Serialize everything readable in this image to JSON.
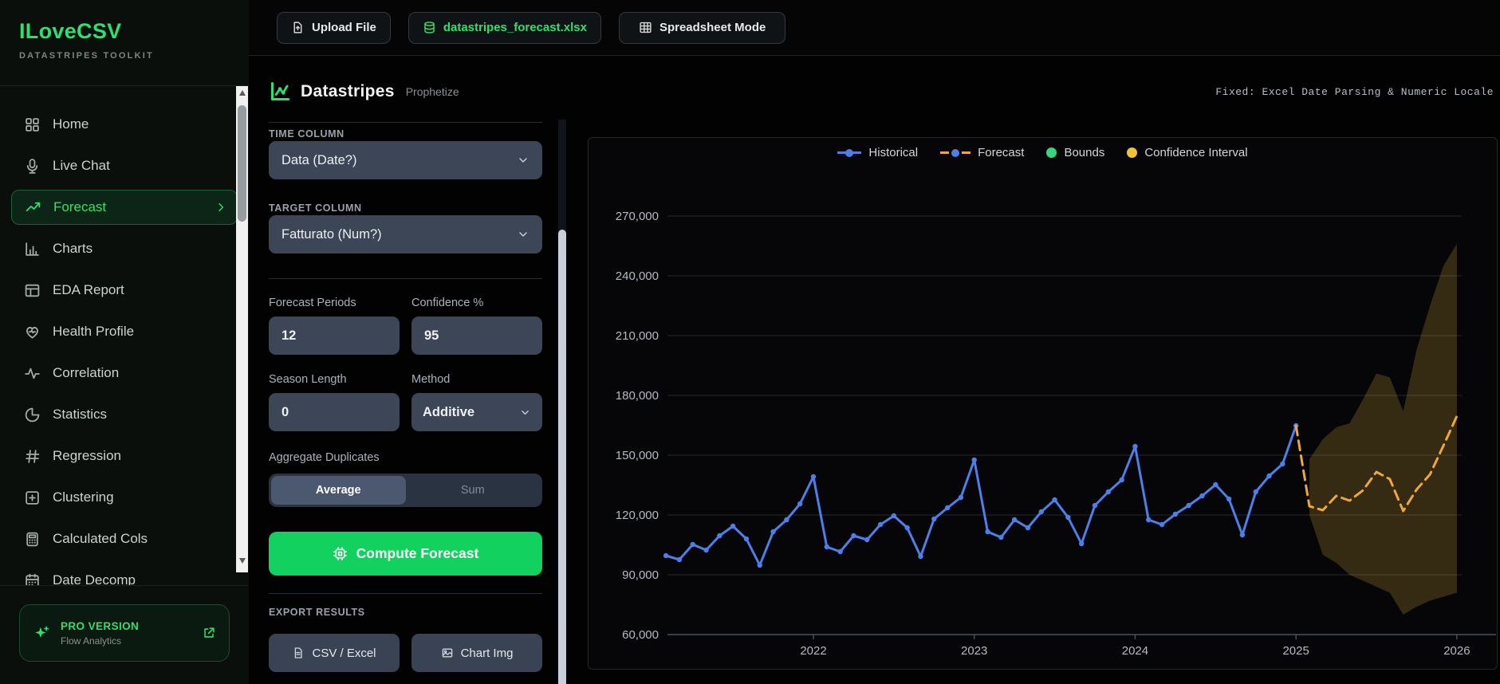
{
  "brand": {
    "title": "ILoveCSV",
    "subtitle": "DATASTRIPES TOOLKIT"
  },
  "sidebar": {
    "items": [
      {
        "label": "Home",
        "icon": "home-grid-icon",
        "active": false
      },
      {
        "label": "Live Chat",
        "icon": "microphone-icon",
        "active": false
      },
      {
        "label": "Forecast",
        "icon": "trend-up-icon",
        "active": true
      },
      {
        "label": "Charts",
        "icon": "bar-chart-icon",
        "active": false
      },
      {
        "label": "EDA Report",
        "icon": "table-icon",
        "active": false
      },
      {
        "label": "Health Profile",
        "icon": "heart-pulse-icon",
        "active": false
      },
      {
        "label": "Correlation",
        "icon": "activity-icon",
        "active": false
      },
      {
        "label": "Statistics",
        "icon": "pie-chart-icon",
        "active": false
      },
      {
        "label": "Regression",
        "icon": "hash-icon",
        "active": false
      },
      {
        "label": "Clustering",
        "icon": "plus-square-icon",
        "active": false
      },
      {
        "label": "Calculated Cols",
        "icon": "calculator-icon",
        "active": false
      },
      {
        "label": "Date Decomp",
        "icon": "calendar-icon",
        "active": false
      }
    ],
    "pro": {
      "title": "PRO VERSION",
      "subtitle": "Flow Analytics"
    }
  },
  "topbar": {
    "upload_label": "Upload File",
    "file_name": "datastripes_forecast.xlsx",
    "mode_label": "Spreadsheet Mode"
  },
  "header": {
    "title": "Datastripes",
    "subtitle": "Prophetize",
    "note": "Fixed: Excel Date Parsing & Numeric Locale"
  },
  "controls": {
    "time_column": {
      "label": "TIME COLUMN",
      "value": "Data (Date?)"
    },
    "target_column": {
      "label": "TARGET COLUMN",
      "value": "Fatturato (Num?)"
    },
    "forecast_periods": {
      "label": "Forecast Periods",
      "value": "12"
    },
    "confidence": {
      "label": "Confidence %",
      "value": "95"
    },
    "season_length": {
      "label": "Season Length",
      "value": "0"
    },
    "method": {
      "label": "Method",
      "value": "Additive"
    },
    "aggregate": {
      "label": "Aggregate Duplicates",
      "options": [
        "Average",
        "Sum"
      ],
      "selected": "Average"
    },
    "compute_label": "Compute Forecast",
    "export": {
      "label": "EXPORT RESULTS",
      "csv_label": "CSV / Excel",
      "img_label": "Chart Img"
    }
  },
  "chart_data": {
    "type": "line",
    "x_start": "2021-02",
    "frequency": "monthly",
    "x_tick_labels": [
      "2022",
      "2023",
      "2024",
      "2025",
      "2026"
    ],
    "x_tick_month_indices": [
      11,
      23,
      35,
      47,
      59
    ],
    "y_ticks": [
      60000,
      90000,
      120000,
      150000,
      180000,
      210000,
      240000,
      270000
    ],
    "ylim": [
      60000,
      290000
    ],
    "grid": true,
    "legend_position": "top-center",
    "series": [
      {
        "name": "Historical",
        "color": "#4c7fe8",
        "style": "solid",
        "markers": true,
        "start_month_index": 0,
        "values": [
          99600,
          97600,
          105200,
          102400,
          109600,
          114400,
          108000,
          94800,
          111600,
          117600,
          125600,
          139200,
          104000,
          101600,
          109600,
          107600,
          115200,
          119600,
          113600,
          99200,
          118000,
          123600,
          128800,
          147600,
          111600,
          108800,
          117600,
          113600,
          121600,
          127600,
          118800,
          105600,
          124800,
          131600,
          137600,
          154400,
          117600,
          115200,
          120400,
          124800,
          129600,
          135200,
          128000,
          110000,
          131600,
          139600,
          145600,
          164800
        ]
      },
      {
        "name": "Forecast",
        "color": "#f0a63c",
        "style": "dashed",
        "markers": false,
        "start_month_index": 47,
        "values": [
          164800,
          124400,
          122400,
          129600,
          127200,
          132400,
          141600,
          138000,
          122000,
          132800,
          140400,
          154800,
          169600
        ]
      }
    ],
    "band": {
      "name": "Confidence Interval",
      "start_month_index": 48,
      "fill_color": "#f3c540",
      "fill_opacity": 0.2,
      "upper": [
        148000,
        158000,
        164000,
        166000,
        178000,
        191000,
        189000,
        172000,
        203000,
        225000,
        245000,
        256000
      ],
      "lower": [
        120000,
        100000,
        96000,
        90000,
        87000,
        84000,
        81000,
        70000,
        74000,
        77000,
        79000,
        81000
      ]
    },
    "legend": [
      {
        "label": "Historical",
        "type": "line-dot",
        "color": "#4c7fe8"
      },
      {
        "label": "Forecast",
        "type": "dash-dot",
        "color": "#f0a63c",
        "dot_color": "#4c7fe8"
      },
      {
        "label": "Bounds",
        "type": "dot",
        "color": "#35d77d"
      },
      {
        "label": "Confidence Interval",
        "type": "dot",
        "color": "#f2c233"
      }
    ]
  }
}
